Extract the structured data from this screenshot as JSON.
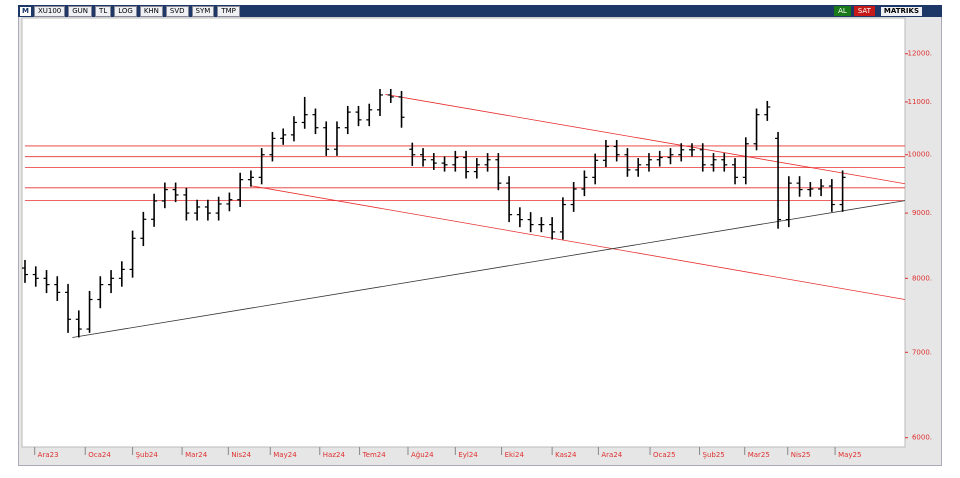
{
  "toolbar": {
    "logo": "M",
    "symbol": "XU100",
    "items": [
      "GUN",
      "TL",
      "LOG",
      "KHN",
      "SVD",
      "SYM",
      "TMP"
    ],
    "buy": "AL",
    "sell": "SAT",
    "brand": "MATRIKS"
  },
  "chart_data": {
    "type": "ohlc",
    "color": "#000000",
    "log_scale": true,
    "x": [
      0,
      1,
      2,
      3,
      4,
      5,
      6,
      7,
      8,
      9,
      10,
      11,
      12,
      13,
      14,
      15,
      16,
      17,
      18,
      19,
      20,
      21,
      22,
      23,
      24,
      25,
      26,
      27,
      28,
      29,
      30,
      31,
      32,
      33,
      34,
      35,
      36,
      37,
      38,
      39,
      40,
      41,
      42,
      43,
      44,
      45,
      46,
      47,
      48,
      49,
      50,
      51,
      52,
      53,
      54,
      55,
      56,
      57,
      58,
      59,
      60,
      61,
      62,
      63,
      64,
      65,
      66,
      67,
      68,
      69,
      70,
      71,
      72,
      73,
      74,
      75,
      76
    ],
    "open": [
      8150,
      8055,
      8000,
      7910,
      7800,
      7430,
      7300,
      7700,
      7910,
      8000,
      8130,
      8600,
      8900,
      9200,
      9390,
      9300,
      9000,
      9100,
      9000,
      9150,
      9220,
      9560,
      9600,
      10000,
      10300,
      10365,
      10600,
      10750,
      10500,
      10100,
      10500,
      10800,
      10650,
      10845,
      11140,
      11100,
      10100,
      10000,
      9910,
      9850,
      9820,
      9950,
      9700,
      9820,
      9910,
      9500,
      8975,
      8895,
      8815,
      8815,
      8700,
      9140,
      9400,
      9600,
      9900,
      10150,
      10000,
      9730,
      9820,
      9910,
      9950,
      10000,
      10090,
      10090,
      9820,
      9910,
      9820,
      9600,
      10200,
      10750,
      10300,
      8895,
      9500,
      9390,
      9400,
      9450,
      9140
    ],
    "high": [
      8270,
      8175,
      8120,
      8030,
      7920,
      7550,
      7820,
      8030,
      8120,
      8250,
      8720,
      9020,
      9320,
      9510,
      9510,
      9420,
      9220,
      9220,
      9270,
      9340,
      9680,
      9720,
      10120,
      10420,
      10485,
      10720,
      11100,
      10870,
      10620,
      10620,
      10920,
      10920,
      10965,
      11260,
      11260,
      11220,
      10220,
      10120,
      10030,
      9970,
      10070,
      10070,
      9940,
      10030,
      10030,
      9620,
      9095,
      9015,
      8935,
      8935,
      9260,
      9520,
      9720,
      10020,
      10270,
      10270,
      10120,
      9940,
      10030,
      10070,
      10120,
      10210,
      10210,
      10210,
      10030,
      10030,
      9940,
      10320,
      10870,
      11020,
      10420,
      9620,
      9620,
      9520,
      9570,
      9570,
      9720
    ],
    "low": [
      7935,
      7880,
      7790,
      7680,
      7250,
      7190,
      7250,
      7580,
      7790,
      7880,
      8010,
      8480,
      8780,
      9080,
      9180,
      8880,
      8880,
      8880,
      8880,
      9030,
      9100,
      9440,
      9480,
      9880,
      10180,
      10245,
      10480,
      10380,
      9980,
      9980,
      10380,
      10530,
      10530,
      10725,
      10980,
      10500,
      9800,
      9790,
      9730,
      9700,
      9700,
      9580,
      9580,
      9700,
      9380,
      8855,
      8775,
      8695,
      8695,
      8580,
      8580,
      9020,
      9280,
      9480,
      9780,
      9880,
      9610,
      9610,
      9700,
      9790,
      9830,
      9880,
      9970,
      9700,
      9700,
      9700,
      9480,
      9480,
      10080,
      10630,
      8750,
      8775,
      9270,
      9270,
      9280,
      9020,
      9020
    ],
    "close": [
      8055,
      8000,
      7910,
      7800,
      7430,
      7300,
      7700,
      7910,
      8000,
      8130,
      8600,
      8900,
      9200,
      9390,
      9300,
      9000,
      9100,
      9000,
      9150,
      9220,
      9560,
      9600,
      10000,
      10300,
      10365,
      10600,
      10750,
      10500,
      10100,
      10500,
      10800,
      10650,
      10845,
      11140,
      11100,
      10700,
      10000,
      9910,
      9850,
      9820,
      9950,
      9700,
      9820,
      9910,
      9500,
      8975,
      8895,
      8815,
      8815,
      8700,
      9140,
      9400,
      9600,
      9900,
      10150,
      10000,
      9730,
      9820,
      9910,
      9950,
      10000,
      10090,
      10090,
      9820,
      9910,
      9820,
      9600,
      10200,
      10750,
      10900,
      8895,
      9500,
      9390,
      9400,
      9450,
      9140,
      9600
    ],
    "xlim": [
      0,
      81.8
    ],
    "xticks": [
      {
        "value": 0.9,
        "label": "Ara23"
      },
      {
        "value": 5.6,
        "label": "Oca24"
      },
      {
        "value": 10.0,
        "label": "Şub24"
      },
      {
        "value": 14.6,
        "label": "Mar24"
      },
      {
        "value": 18.9,
        "label": "Nis24"
      },
      {
        "value": 22.8,
        "label": "May24"
      },
      {
        "value": 27.4,
        "label": "Haz24"
      },
      {
        "value": 31.1,
        "label": "Tem24"
      },
      {
        "value": 35.6,
        "label": "Ağu24"
      },
      {
        "value": 40.0,
        "label": "Eyl24"
      },
      {
        "value": 44.3,
        "label": "Eki24"
      },
      {
        "value": 49.0,
        "label": "Kas24"
      },
      {
        "value": 53.3,
        "label": "Ara24"
      },
      {
        "value": 58.1,
        "label": "Oca25"
      },
      {
        "value": 62.7,
        "label": "Şub25"
      },
      {
        "value": 66.9,
        "label": "Mar25"
      },
      {
        "value": 70.9,
        "label": "Nis25"
      },
      {
        "value": 75.3,
        "label": "May25"
      }
    ],
    "ylim": [
      5900,
      12800
    ],
    "yticks": [
      {
        "value": 6000,
        "label": "6000."
      },
      {
        "value": 7000,
        "label": "7000."
      },
      {
        "value": 8000,
        "label": "8000."
      },
      {
        "value": 9000,
        "label": "9000."
      },
      {
        "value": 10000,
        "label": "10000."
      },
      {
        "value": 11000,
        "label": "11000."
      },
      {
        "value": 12000,
        "label": "12000."
      }
    ],
    "levels": {
      "color": "#e83030",
      "values": [
        10160,
        9965,
        9770,
        9420,
        9205
      ]
    },
    "trendlines": [
      {
        "color": "#e83030",
        "x": [
          33.5,
          81.8
        ],
        "y": [
          11150,
          9490
        ]
      },
      {
        "color": "#e83030",
        "x": [
          21,
          81.8
        ],
        "y": [
          9455,
          7700
        ]
      },
      {
        "color": "#333333",
        "x": [
          4.4,
          81.8
        ],
        "y": [
          7190,
          9205
        ]
      }
    ]
  }
}
